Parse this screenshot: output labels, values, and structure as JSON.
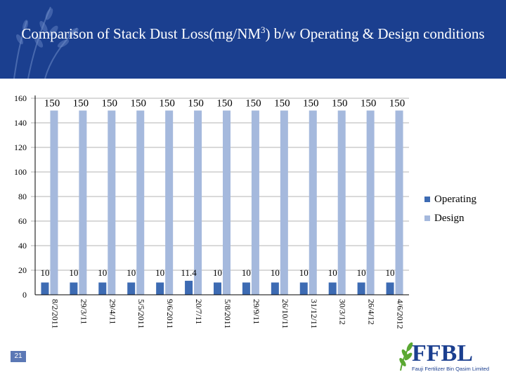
{
  "page": {
    "slide_number": "21",
    "logo": {
      "name": "FFBL",
      "subtitle": "Fauji Fertilizer Bin Qasim Limited"
    }
  },
  "colors": {
    "header_bg": "#1b3f8f",
    "operating": "#3d6bb3",
    "design": "#a5b9dd",
    "gridline": "#9a9a9a",
    "logo_blue": "#1b3f8f",
    "logo_green": "#5aa832"
  },
  "chart_data": {
    "type": "bar",
    "title": "Comparison of Stack Dust Loss(mg/NM3)  b/w Operating & Design conditions",
    "xlabel": "",
    "ylabel": "",
    "ylim": [
      0,
      160
    ],
    "yticks": [
      0,
      20,
      40,
      60,
      80,
      100,
      120,
      140,
      160
    ],
    "grid": true,
    "legend_position": "right",
    "categories": [
      "8/2/2011",
      "29/3/11",
      "29/4/11",
      "5/5/2011",
      "9/6/2011",
      "20/7/11",
      "5/8/2011",
      "29/9/11",
      "26/10/11",
      "31/12/11",
      "30/3/12",
      "26/4/12",
      "4/6/2012"
    ],
    "series": [
      {
        "name": "Operating",
        "color": "#3d6bb3",
        "values": [
          10,
          10,
          10,
          10,
          10,
          11.4,
          10,
          10,
          10,
          10,
          10,
          10,
          10
        ],
        "labels": [
          "10",
          "10",
          "10",
          "10",
          "10",
          "11.4",
          "10",
          "10",
          "10",
          "10",
          "10",
          "10",
          "10"
        ]
      },
      {
        "name": "Design",
        "color": "#a5b9dd",
        "values": [
          150,
          150,
          150,
          150,
          150,
          150,
          150,
          150,
          150,
          150,
          150,
          150,
          150
        ],
        "labels": [
          "150",
          "150",
          "150",
          "150",
          "150",
          "150",
          "150",
          "150",
          "150",
          "150",
          "150",
          "150",
          "150"
        ]
      }
    ]
  }
}
